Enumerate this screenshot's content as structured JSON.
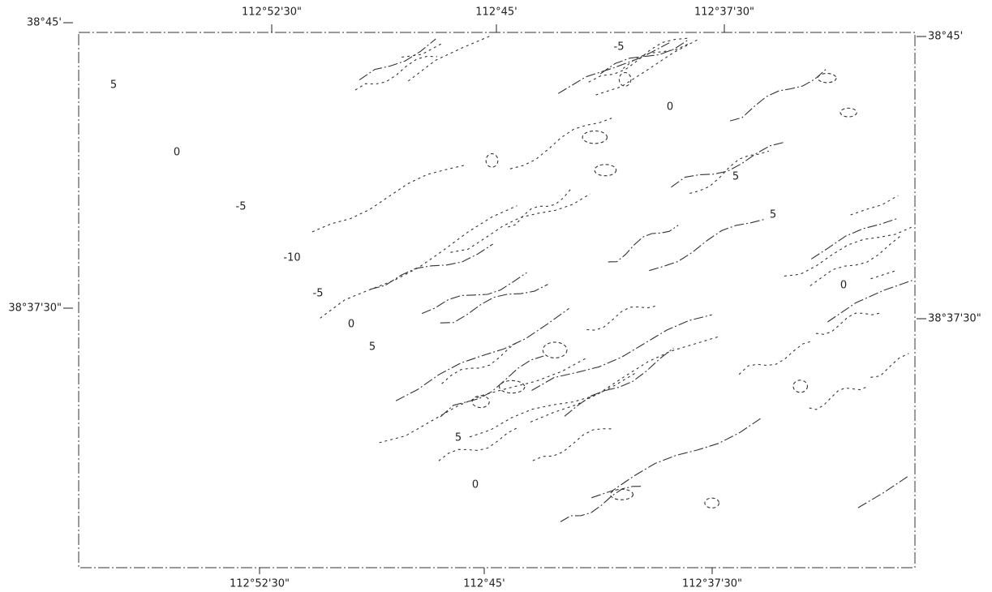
{
  "map": {
    "top_labels": [
      "112°52'30\"",
      "112°45'",
      "112°37'30\""
    ],
    "bottom_labels": [
      "112°52'30\"",
      "112°45'",
      "112°37'30\""
    ],
    "left_labels": [
      "38°45'",
      "38°37'30\""
    ],
    "right_labels": [
      "38°45'",
      "38°37'30\""
    ],
    "contour_labels": [
      "5",
      "0",
      "-5",
      "-10",
      "-5",
      "0",
      "5",
      "5",
      "0",
      "-5",
      "0",
      "5",
      "5",
      "0"
    ]
  }
}
